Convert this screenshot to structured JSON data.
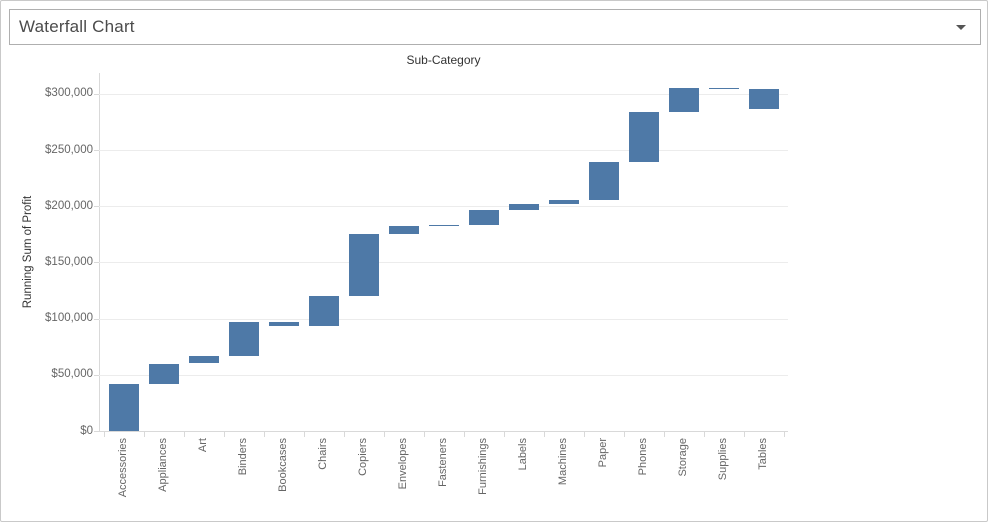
{
  "window": {
    "title": "Waterfall Chart",
    "dropdown_icon": "caret-down-icon"
  },
  "chart_data": {
    "type": "waterfall",
    "title": "Sub-Category",
    "xlabel": "Sub-Category",
    "ylabel": "Running Sum of Profit",
    "categories": [
      "Accessories",
      "Appliances",
      "Art",
      "Binders",
      "Bookcases",
      "Chairs",
      "Copiers",
      "Envelopes",
      "Fasteners",
      "Furnishings",
      "Labels",
      "Machines",
      "Paper",
      "Phones",
      "Storage",
      "Supplies",
      "Tables"
    ],
    "values": [
      41937,
      18138,
      6528,
      30222,
      -3473,
      26590,
      55618,
      6964,
      950,
      13059,
      5546,
      3385,
      34054,
      44516,
      21279,
      -1189,
      -17725
    ],
    "running_sum_end": [
      41937,
      60075,
      66603,
      96825,
      93352,
      119942,
      175560,
      182524,
      183474,
      196533,
      202079,
      205464,
      239518,
      284034,
      305313,
      304124,
      286399
    ],
    "yticks": [
      {
        "value": 0,
        "label": "$0"
      },
      {
        "value": 50000,
        "label": "$50,000"
      },
      {
        "value": 100000,
        "label": "$100,000"
      },
      {
        "value": 150000,
        "label": "$150,000"
      },
      {
        "value": 200000,
        "label": "$200,000"
      },
      {
        "value": 250000,
        "label": "$250,000"
      },
      {
        "value": 300000,
        "label": "$300,000"
      }
    ],
    "ylim": [
      0,
      318000
    ],
    "grid": "horizontal",
    "legend": "none",
    "bar_color": "#4e79a7"
  },
  "colors": {
    "bar": "#4e79a7",
    "gridline": "#ececec",
    "axis_line": "#d9d9d9",
    "tick_label": "#666666",
    "title_text": "#333333",
    "window_title_text": "#4b4b4b",
    "border": "#afafaf"
  }
}
